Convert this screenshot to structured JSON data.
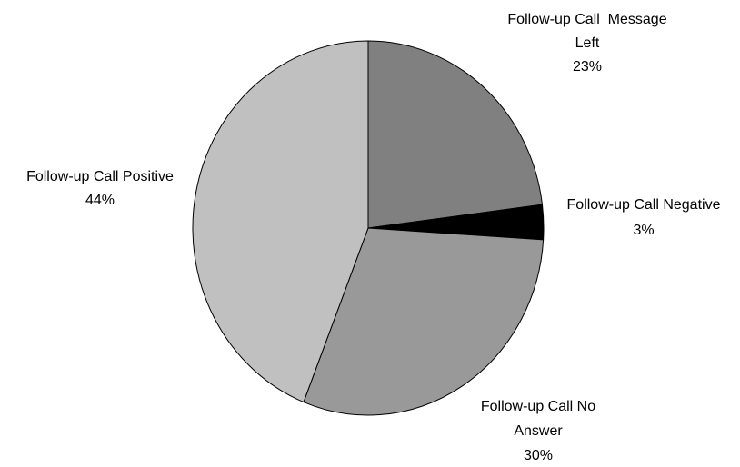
{
  "chart_data": {
    "type": "pie",
    "title": "",
    "start_angle_deg": 0,
    "direction": "clockwise",
    "legend": "none",
    "slices": [
      {
        "label": [
          "Follow-up Call  Message",
          "Left"
        ],
        "value": 23,
        "value_label": "23%",
        "color": "#808080"
      },
      {
        "label": [
          "Follow-up Call Negative"
        ],
        "value": 3,
        "value_label": "3%",
        "color": "#000000"
      },
      {
        "label": [
          "Follow-up Call No",
          "Answer"
        ],
        "value": 30,
        "value_label": "30%",
        "color": "#999999"
      },
      {
        "label": [
          "Follow-up Call Positive"
        ],
        "value": 44,
        "value_label": "44%",
        "color": "#c0c0c0"
      }
    ]
  }
}
